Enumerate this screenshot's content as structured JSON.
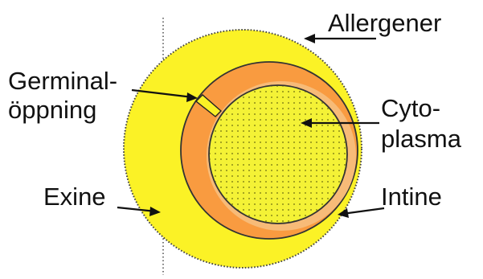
{
  "labels": {
    "allergener": "Allergener",
    "germinal_line1": "Germinal-",
    "germinal_line2": "öppning",
    "cyto_line1": "Cyto-",
    "cyto_line2": "plasma",
    "exine": "Exine",
    "intine": "Intine"
  },
  "colors": {
    "exine": "#fbf226",
    "intine": "#f99b40",
    "intine_inner": "#f7bb78",
    "cytoplasma": "#f4f236",
    "outline": "#333333"
  }
}
